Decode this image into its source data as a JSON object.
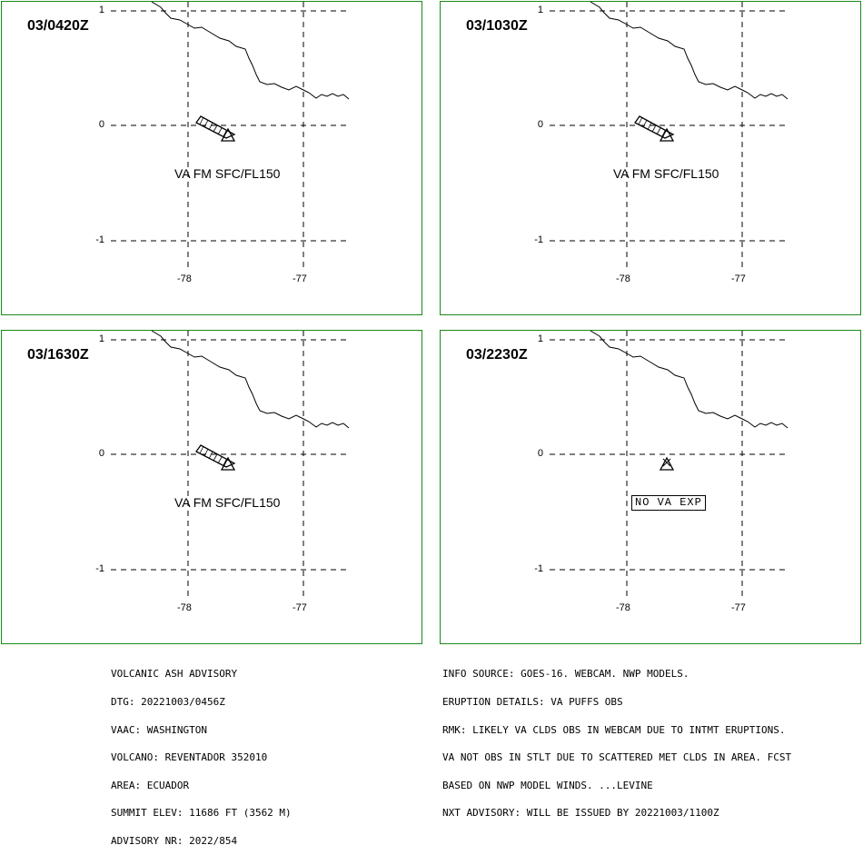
{
  "panels": [
    {
      "valid_time": "03/0420Z",
      "label": "VA FM SFC/FL150",
      "ash_cloud": true
    },
    {
      "valid_time": "03/1030Z",
      "label": "VA FM SFC/FL150",
      "ash_cloud": true
    },
    {
      "valid_time": "03/1630Z",
      "label": "VA FM SFC/FL150",
      "ash_cloud": true
    },
    {
      "valid_time": "03/2230Z",
      "label": "NO VA EXP",
      "ash_cloud": false
    }
  ],
  "axes": {
    "lat_ticks": [
      "1",
      "0",
      "-1"
    ],
    "lon_ticks": [
      "-78",
      "-77"
    ]
  },
  "advisory_left": [
    "VOLCANIC ASH ADVISORY",
    "DTG: 20221003/0456Z",
    "VAAC: WASHINGTON",
    "VOLCANO: REVENTADOR 352010",
    "AREA: ECUADOR",
    "SUMMIT ELEV: 11686 FT (3562 M)",
    "ADVISORY NR: 2022/854"
  ],
  "advisory_right": [
    "INFO SOURCE: GOES-16. WEBCAM. NWP MODELS.",
    "ERUPTION DETAILS: VA PUFFS OBS",
    "RMK: LIKELY VA CLDS OBS IN WEBCAM DUE TO INTMT ERUPTIONS.",
    "VA NOT OBS IN STLT DUE TO SCATTERED MET CLDS IN AREA. FCST",
    "BASED ON NWP MODEL WINDS. ...LEVINE",
    "NXT ADVISORY: WILL BE ISSUED BY 20221003/1100Z"
  ],
  "colors": {
    "panel_border": "#1a8a1a",
    "ink": "#000000"
  }
}
